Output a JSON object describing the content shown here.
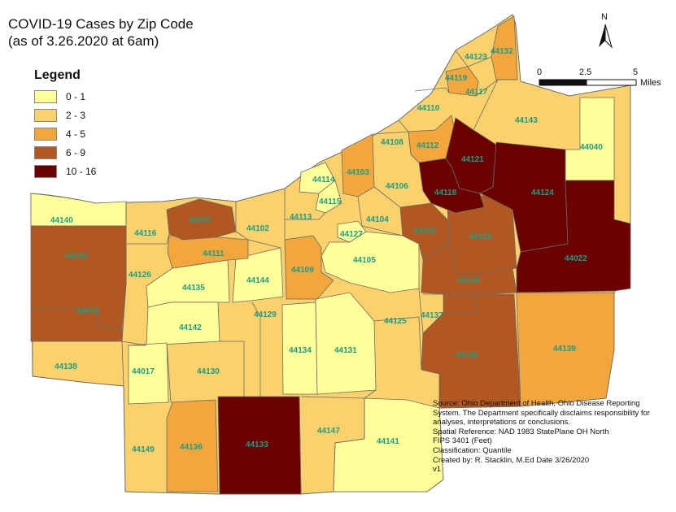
{
  "title": {
    "line1": "COVID-19 Cases by Zip Code",
    "line2": "(as of 3.26.2020 at 6am)"
  },
  "legend": {
    "title": "Legend",
    "classes": [
      {
        "label": "0 - 1",
        "color": "#ffff99"
      },
      {
        "label": "2 - 3",
        "color": "#fad16b"
      },
      {
        "label": "4 - 5",
        "color": "#f2a63c"
      },
      {
        "label": "6 - 9",
        "color": "#b0581f"
      },
      {
        "label": "10 - 16",
        "color": "#6b0000"
      }
    ]
  },
  "north_arrow": {
    "label": "N"
  },
  "scale_bar": {
    "ticks": [
      "0",
      "2.5",
      "5"
    ],
    "unit": "Miles"
  },
  "source_lines": [
    "Source: Ohio Department of Health, Ohio Disease Reporting",
    "System. The Department specifically disclaims responsibility for",
    " analyses, interpretations or conclusions.",
    "  Spatial Reference: NAD 1983 StatePlane OH North",
    "   FIPS 3401 (Feet)",
    "   Classification: Quantile",
    "    Created by: R. Stacklin, M.Ed  Date 3/26/2020",
    "      v1"
  ],
  "zip_labels": [
    "44123",
    "44132",
    "44119",
    "44117",
    "44110",
    "44143",
    "44108",
    "44112",
    "44121",
    "44040",
    "44103",
    "44114",
    "44118",
    "44124",
    "44106",
    "44115",
    "44107",
    "44140",
    "44113",
    "44104",
    "44102",
    "44127",
    "44120",
    "44122",
    "44116",
    "44145",
    "44111",
    "44105",
    "44126",
    "44109",
    "44022",
    "44135",
    "44144",
    "44128",
    "44070",
    "44129",
    "44137",
    "44142",
    "44125",
    "44134",
    "44131",
    "44146",
    "44139",
    "44138",
    "44017",
    "44130",
    "44149",
    "44136",
    "44133",
    "44147",
    "44141"
  ]
}
